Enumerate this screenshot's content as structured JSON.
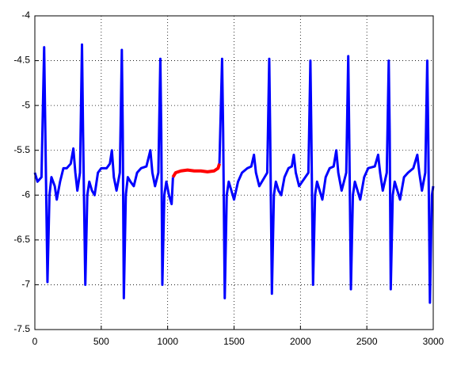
{
  "chart_data": {
    "type": "line",
    "xlim": [
      0,
      3000
    ],
    "xticks": [
      0,
      500,
      1000,
      1500,
      2000,
      2500,
      3000
    ],
    "ylim": [
      -7.5,
      -4
    ],
    "yticks": [
      -4,
      -4.5,
      -5,
      -5.5,
      -6,
      -6.5,
      -7,
      -7.5
    ],
    "grid": true,
    "series": [
      {
        "color": "#0000ff",
        "x": [
          0,
          20,
          50,
          70,
          78,
          95,
          110,
          125,
          150,
          165,
          190,
          215,
          240,
          270,
          290,
          305,
          320,
          340,
          355,
          363,
          380,
          395,
          410,
          430,
          450,
          475,
          500,
          540,
          565,
          580,
          595,
          615,
          640,
          655,
          662,
          670,
          685,
          700,
          720,
          745,
          770,
          800,
          840,
          870,
          885,
          905,
          930,
          945,
          952,
          960,
          975,
          990,
          1010,
          1030,
          1040,
          null,
          1390,
          1410,
          1418,
          1430,
          1445,
          1460,
          1480,
          1500,
          1530,
          1560,
          1600,
          1630,
          1650,
          1665,
          1690,
          1750,
          1765,
          1772,
          1785,
          1800,
          1815,
          1835,
          1855,
          1880,
          1910,
          1935,
          1950,
          1965,
          1990,
          2060,
          2075,
          2082,
          2095,
          2110,
          2125,
          2145,
          2165,
          2190,
          2220,
          2250,
          2270,
          2285,
          2310,
          2345,
          2360,
          2367,
          2380,
          2395,
          2410,
          2430,
          2450,
          2480,
          2510,
          2560,
          2585,
          2600,
          2620,
          2650,
          2665,
          2672,
          2680,
          2695,
          2710,
          2730,
          2750,
          2780,
          2810,
          2850,
          2880,
          2895,
          2915,
          2940,
          2955,
          2962,
          2975,
          2990,
          3000
        ],
        "values": [
          -5.75,
          -5.85,
          -5.8,
          -4.35,
          -5.2,
          -6.97,
          -6.0,
          -5.8,
          -5.9,
          -6.05,
          -5.85,
          -5.7,
          -5.7,
          -5.65,
          -5.48,
          -5.75,
          -5.95,
          -5.75,
          -4.32,
          -5.3,
          -7.0,
          -6.0,
          -5.85,
          -5.95,
          -6.0,
          -5.75,
          -5.7,
          -5.7,
          -5.65,
          -5.5,
          -5.8,
          -5.95,
          -5.75,
          -4.38,
          -5.3,
          -7.15,
          -6.0,
          -5.8,
          -5.85,
          -5.9,
          -5.75,
          -5.7,
          -5.68,
          -5.5,
          -5.75,
          -5.9,
          -5.75,
          -4.48,
          -5.3,
          -7.0,
          -6.0,
          -5.85,
          -6.0,
          -6.1,
          -5.8,
          null,
          -5.65,
          -4.48,
          -5.3,
          -7.15,
          -6.0,
          -5.85,
          -5.95,
          -6.05,
          -5.85,
          -5.75,
          -5.7,
          -5.68,
          -5.55,
          -5.75,
          -5.9,
          -5.75,
          -4.48,
          -5.3,
          -7.1,
          -6.0,
          -5.85,
          -5.95,
          -6.0,
          -5.8,
          -5.7,
          -5.68,
          -5.55,
          -5.75,
          -5.9,
          -5.75,
          -4.5,
          -5.3,
          -7.0,
          -6.0,
          -5.85,
          -5.95,
          -6.05,
          -5.8,
          -5.7,
          -5.68,
          -5.5,
          -5.75,
          -5.95,
          -5.75,
          -4.45,
          -5.3,
          -7.05,
          -6.0,
          -5.85,
          -5.95,
          -6.05,
          -5.8,
          -5.7,
          -5.68,
          -5.55,
          -5.75,
          -5.95,
          -5.75,
          -4.5,
          -5.3,
          -7.05,
          -6.0,
          -5.85,
          -5.95,
          -6.05,
          -5.8,
          -5.75,
          -5.7,
          -5.55,
          -5.75,
          -5.95,
          -5.75,
          -4.5,
          -5.3,
          -7.2,
          -6.0,
          -5.9
        ]
      },
      {
        "color": "#ff0000",
        "x": [
          1040,
          1060,
          1100,
          1150,
          1200,
          1250,
          1300,
          1350,
          1380,
          1390
        ],
        "values": [
          -5.8,
          -5.75,
          -5.73,
          -5.72,
          -5.73,
          -5.73,
          -5.74,
          -5.73,
          -5.7,
          -5.65
        ]
      }
    ]
  }
}
